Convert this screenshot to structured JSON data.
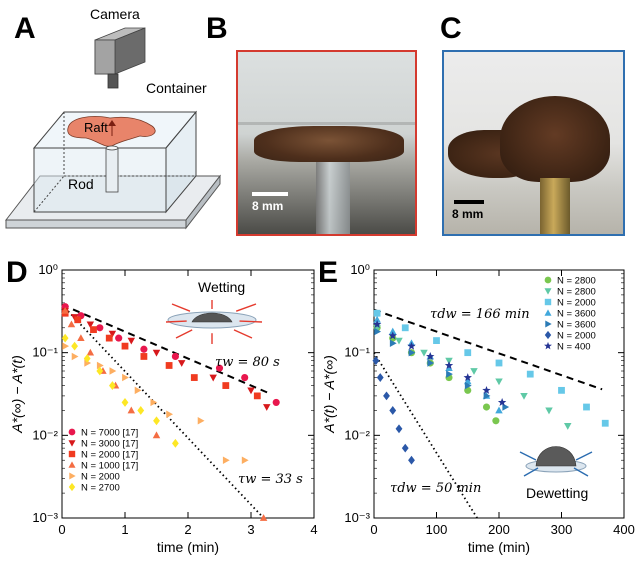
{
  "panels": {
    "a": "A",
    "b": "B",
    "c": "C",
    "d": "D",
    "e": "E"
  },
  "schematic": {
    "camera": "Camera",
    "container": "Container",
    "raft": "Raft",
    "rod": "Rod",
    "raft_color": "#e8846a"
  },
  "photo_b": {
    "scale_label": "8 mm",
    "frame_color": "#d43a2f"
  },
  "photo_c": {
    "scale_label": "8 mm",
    "frame_color": "#2f6fb0"
  },
  "chart_data": [
    {
      "id": "D",
      "type": "scatter",
      "xlabel": "time (min)",
      "ylabel": "A*(∞) − A*(t)",
      "xlim": [
        0,
        4
      ],
      "ylim": [
        0.001,
        1
      ],
      "yscale": "log",
      "xticks": [
        "0",
        "1",
        "2",
        "3",
        "4"
      ],
      "yticks": [
        "10⁻³",
        "10⁻²",
        "10⁻¹",
        "10⁰"
      ],
      "inset_label": "Wetting",
      "annotations": [
        {
          "text": "τw = 80 s",
          "sub": "w",
          "tau": 80
        },
        {
          "text": "τw = 33 s",
          "sub": "w",
          "tau": 33
        }
      ],
      "fit_lines": [
        {
          "style": "dashed",
          "x": [
            0,
            3.3
          ],
          "y": [
            0.38,
            0.032
          ]
        },
        {
          "style": "dotted",
          "x": [
            0,
            3.2
          ],
          "y": [
            0.38,
            0.001
          ]
        }
      ],
      "series": [
        {
          "name": "N = 7000 [17]",
          "marker": "circle",
          "color": "#e8174d",
          "x": [
            0.05,
            0.3,
            0.6,
            0.9,
            1.3,
            1.8,
            2.5,
            2.9,
            3.4
          ],
          "y": [
            0.36,
            0.28,
            0.2,
            0.15,
            0.11,
            0.09,
            0.065,
            0.05,
            0.025
          ]
        },
        {
          "name": "N = 3000 [17]",
          "marker": "triangle-down",
          "color": "#d7191c",
          "x": [
            0.05,
            0.2,
            0.45,
            0.8,
            1.1,
            1.5,
            1.9,
            2.4,
            3.0,
            3.25
          ],
          "y": [
            0.32,
            0.27,
            0.22,
            0.17,
            0.14,
            0.1,
            0.075,
            0.05,
            0.035,
            0.022
          ]
        },
        {
          "name": "N = 2000 [17]",
          "marker": "square",
          "color": "#f03b20",
          "x": [
            0.05,
            0.25,
            0.5,
            0.75,
            1.0,
            1.3,
            1.7,
            2.1,
            2.6,
            3.1
          ],
          "y": [
            0.3,
            0.25,
            0.19,
            0.15,
            0.12,
            0.09,
            0.07,
            0.05,
            0.04,
            0.03
          ]
        },
        {
          "name": "N = 1000 [17]",
          "marker": "triangle-up",
          "color": "#f46d43",
          "x": [
            0.05,
            0.15,
            0.3,
            0.45,
            0.65,
            0.85,
            1.1,
            1.5,
            3.2
          ],
          "y": [
            0.32,
            0.22,
            0.15,
            0.1,
            0.06,
            0.04,
            0.02,
            0.01,
            0.001
          ]
        },
        {
          "name": "N = 2000",
          "marker": "triangle-right",
          "color": "#fdae61",
          "x": [
            0.05,
            0.2,
            0.4,
            0.6,
            0.8,
            1.0,
            1.2,
            1.45,
            1.7,
            2.2,
            2.6,
            2.9
          ],
          "y": [
            0.12,
            0.09,
            0.075,
            0.07,
            0.06,
            0.05,
            0.035,
            0.025,
            0.018,
            0.015,
            0.005,
            0.005
          ]
        },
        {
          "name": "N = 2700",
          "marker": "diamond",
          "color": "#fde725",
          "x": [
            0.05,
            0.2,
            0.4,
            0.6,
            0.8,
            1.0,
            1.25,
            1.5,
            1.8
          ],
          "y": [
            0.15,
            0.12,
            0.085,
            0.06,
            0.04,
            0.025,
            0.02,
            0.015,
            0.008
          ]
        }
      ],
      "legend_position": "lower-left"
    },
    {
      "id": "E",
      "type": "scatter",
      "xlabel": "time (min)",
      "ylabel": "A*(t) − A*(∞)",
      "xlim": [
        0,
        400
      ],
      "ylim": [
        0.001,
        1
      ],
      "yscale": "log",
      "xticks": [
        "0",
        "100",
        "200",
        "300",
        "400"
      ],
      "yticks": [
        "10⁻³",
        "10⁻²",
        "10⁻¹",
        "10⁰"
      ],
      "inset_label": "Dewetting",
      "annotations": [
        {
          "text": "τdw = 166 min",
          "sub": "dw",
          "tau": 166
        },
        {
          "text": "τdw = 50 min",
          "sub": "dw",
          "tau": 50
        }
      ],
      "fit_lines": [
        {
          "style": "dashed",
          "x": [
            0,
            365
          ],
          "y": [
            0.33,
            0.036
          ]
        },
        {
          "style": "dotted",
          "x": [
            0,
            165
          ],
          "y": [
            0.1,
            0.001
          ]
        }
      ],
      "series": [
        {
          "name": "N = 2800",
          "marker": "circle",
          "color": "#7ac74f",
          "x": [
            5,
            30,
            60,
            90,
            120,
            150,
            180,
            195
          ],
          "y": [
            0.2,
            0.15,
            0.1,
            0.075,
            0.05,
            0.035,
            0.022,
            0.015
          ]
        },
        {
          "name": "N = 2800",
          "marker": "triangle-down",
          "color": "#5fc9a6",
          "x": [
            5,
            40,
            80,
            120,
            160,
            200,
            240,
            280,
            310
          ],
          "y": [
            0.2,
            0.14,
            0.1,
            0.08,
            0.06,
            0.045,
            0.03,
            0.02,
            0.013
          ]
        },
        {
          "name": "N = 2000",
          "marker": "square",
          "color": "#66c8e8",
          "x": [
            5,
            50,
            100,
            150,
            200,
            250,
            300,
            340,
            370
          ],
          "y": [
            0.3,
            0.2,
            0.14,
            0.1,
            0.075,
            0.055,
            0.035,
            0.022,
            0.014
          ]
        },
        {
          "name": "N = 3600",
          "marker": "triangle-up",
          "color": "#41a8dc",
          "x": [
            5,
            30,
            60,
            90,
            120,
            150,
            180,
            200
          ],
          "y": [
            0.25,
            0.18,
            0.13,
            0.09,
            0.065,
            0.045,
            0.03,
            0.02
          ]
        },
        {
          "name": "N = 3600",
          "marker": "triangle-right",
          "color": "#2c7bb6",
          "x": [
            5,
            30,
            60,
            90,
            120,
            150,
            180,
            210
          ],
          "y": [
            0.18,
            0.13,
            0.1,
            0.075,
            0.055,
            0.04,
            0.03,
            0.022
          ]
        },
        {
          "name": "N = 2000",
          "marker": "diamond",
          "color": "#2b58a8",
          "x": [
            3,
            10,
            20,
            30,
            40,
            50,
            60
          ],
          "y": [
            0.08,
            0.05,
            0.03,
            0.02,
            0.012,
            0.007,
            0.005
          ]
        },
        {
          "name": "N = 400",
          "marker": "star",
          "color": "#253494",
          "x": [
            5,
            30,
            60,
            90,
            120,
            150,
            180,
            205
          ],
          "y": [
            0.22,
            0.16,
            0.12,
            0.09,
            0.07,
            0.05,
            0.035,
            0.025
          ]
        }
      ],
      "legend_position": "upper-right"
    }
  ]
}
